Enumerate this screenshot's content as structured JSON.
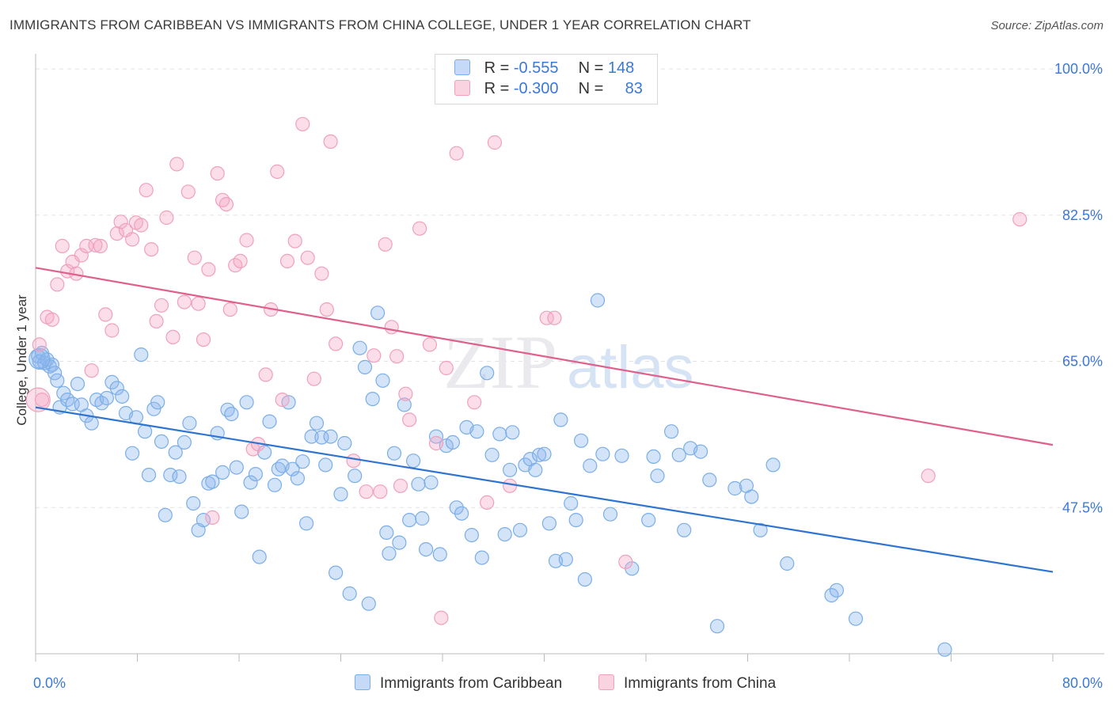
{
  "header": {
    "title": "IMMIGRANTS FROM CARIBBEAN VS IMMIGRANTS FROM CHINA COLLEGE, UNDER 1 YEAR CORRELATION CHART",
    "source": "Source: ZipAtlas.com"
  },
  "watermark": {
    "zip": "ZIP",
    "atlas": "atlas"
  },
  "legend": {
    "rows": [
      {
        "r_label": "R =",
        "r_value": "-0.555",
        "n_label": "N =",
        "n_value": "148"
      },
      {
        "r_label": "R =",
        "r_value": "-0.300",
        "n_label": "N =",
        "n_value": "83"
      }
    ],
    "bottom": [
      "Immigrants from Caribbean",
      "Immigrants from China"
    ]
  },
  "colors": {
    "caribbean": "#7aaee8",
    "china": "#f0a0bb",
    "caribbean_line": "#2f74d0",
    "china_line": "#e0608c",
    "tick": "#3c78d8"
  },
  "chart_data": {
    "type": "scatter",
    "title": "IMMIGRANTS FROM CARIBBEAN VS IMMIGRANTS FROM CHINA COLLEGE, UNDER 1 YEAR CORRELATION CHART",
    "ylabel": "College, Under 1 year",
    "xlim": [
      0,
      80
    ],
    "ylim": [
      30,
      102
    ],
    "x_tick_labels": [
      "0.0%",
      "80.0%"
    ],
    "y_ticks": [
      47.5,
      65.0,
      82.5,
      100.0
    ],
    "y_tick_labels": [
      "47.5%",
      "65.0%",
      "82.5%",
      "100.0%"
    ],
    "grid": true,
    "series": [
      {
        "name": "Immigrants from Caribbean",
        "color": "#7aaee8",
        "trend": [
          [
            0,
            59.5
          ],
          [
            80,
            39.8
          ]
        ],
        "points": [
          [
            0.2,
            65.6
          ],
          [
            0.3,
            65.0
          ],
          [
            0.5,
            66.0
          ],
          [
            0.7,
            64.8
          ],
          [
            0.9,
            65.2
          ],
          [
            1.1,
            64.4
          ],
          [
            1.3,
            64.6
          ],
          [
            1.5,
            63.6
          ],
          [
            1.7,
            62.7
          ],
          [
            1.9,
            59.5
          ],
          [
            2.2,
            61.2
          ],
          [
            2.5,
            60.4
          ],
          [
            2.9,
            59.9
          ],
          [
            3.3,
            62.3
          ],
          [
            3.6,
            59.8
          ],
          [
            4.0,
            58.5
          ],
          [
            4.4,
            57.6
          ],
          [
            4.8,
            60.4
          ],
          [
            5.2,
            60.0
          ],
          [
            5.6,
            60.6
          ],
          [
            6.0,
            62.5
          ],
          [
            6.4,
            61.8
          ],
          [
            6.8,
            60.8
          ],
          [
            7.1,
            58.8
          ],
          [
            7.6,
            54.0
          ],
          [
            7.9,
            58.3
          ],
          [
            8.3,
            65.8
          ],
          [
            8.6,
            56.6
          ],
          [
            8.9,
            51.4
          ],
          [
            9.3,
            59.3
          ],
          [
            9.6,
            60.1
          ],
          [
            9.9,
            55.4
          ],
          [
            10.2,
            46.6
          ],
          [
            10.6,
            51.4
          ],
          [
            11.0,
            54.1
          ],
          [
            11.3,
            51.2
          ],
          [
            11.7,
            55.3
          ],
          [
            12.1,
            57.6
          ],
          [
            12.4,
            48.0
          ],
          [
            12.8,
            44.8
          ],
          [
            13.2,
            46.0
          ],
          [
            13.6,
            50.4
          ],
          [
            13.9,
            50.6
          ],
          [
            14.3,
            56.4
          ],
          [
            14.7,
            51.7
          ],
          [
            15.1,
            59.2
          ],
          [
            15.4,
            58.7
          ],
          [
            15.8,
            52.3
          ],
          [
            16.2,
            47.0
          ],
          [
            16.6,
            60.1
          ],
          [
            16.9,
            50.5
          ],
          [
            17.3,
            51.5
          ],
          [
            17.6,
            41.6
          ],
          [
            18.0,
            54.1
          ],
          [
            18.4,
            57.8
          ],
          [
            18.8,
            50.2
          ],
          [
            19.1,
            52.1
          ],
          [
            19.4,
            52.5
          ],
          [
            19.9,
            60.1
          ],
          [
            20.2,
            52.1
          ],
          [
            20.6,
            51.0
          ],
          [
            21.0,
            53.0
          ],
          [
            21.3,
            45.6
          ],
          [
            21.7,
            56.0
          ],
          [
            22.1,
            57.6
          ],
          [
            22.5,
            55.9
          ],
          [
            22.8,
            52.6
          ],
          [
            23.2,
            56.0
          ],
          [
            23.6,
            39.7
          ],
          [
            24.0,
            49.1
          ],
          [
            24.3,
            55.2
          ],
          [
            24.7,
            37.2
          ],
          [
            25.1,
            51.3
          ],
          [
            25.5,
            66.6
          ],
          [
            25.9,
            64.3
          ],
          [
            26.2,
            36.0
          ],
          [
            26.5,
            60.5
          ],
          [
            26.9,
            70.8
          ],
          [
            27.3,
            62.7
          ],
          [
            27.6,
            44.5
          ],
          [
            27.8,
            42.0
          ],
          [
            28.2,
            54.0
          ],
          [
            28.6,
            43.3
          ],
          [
            29.0,
            59.8
          ],
          [
            29.4,
            46.0
          ],
          [
            29.7,
            53.1
          ],
          [
            30.1,
            50.3
          ],
          [
            30.4,
            46.2
          ],
          [
            30.7,
            42.5
          ],
          [
            31.1,
            50.5
          ],
          [
            31.5,
            56.0
          ],
          [
            31.8,
            41.9
          ],
          [
            32.3,
            54.9
          ],
          [
            32.8,
            55.3
          ],
          [
            33.1,
            47.5
          ],
          [
            33.5,
            46.8
          ],
          [
            33.9,
            57.1
          ],
          [
            34.3,
            44.2
          ],
          [
            34.7,
            56.6
          ],
          [
            35.1,
            41.5
          ],
          [
            35.5,
            63.6
          ],
          [
            35.9,
            53.8
          ],
          [
            36.5,
            56.3
          ],
          [
            36.9,
            44.3
          ],
          [
            37.3,
            52.0
          ],
          [
            37.5,
            56.5
          ],
          [
            38.1,
            44.8
          ],
          [
            38.5,
            52.6
          ],
          [
            38.9,
            53.3
          ],
          [
            39.3,
            52.0
          ],
          [
            39.6,
            53.8
          ],
          [
            40.0,
            53.9
          ],
          [
            40.4,
            45.6
          ],
          [
            40.9,
            41.1
          ],
          [
            41.3,
            58.0
          ],
          [
            41.7,
            41.3
          ],
          [
            42.1,
            48.0
          ],
          [
            42.5,
            46.0
          ],
          [
            42.9,
            55.5
          ],
          [
            43.2,
            38.9
          ],
          [
            43.6,
            52.5
          ],
          [
            44.2,
            72.3
          ],
          [
            44.6,
            53.9
          ],
          [
            45.2,
            46.7
          ],
          [
            46.1,
            53.7
          ],
          [
            46.9,
            40.2
          ],
          [
            48.2,
            46.0
          ],
          [
            48.6,
            53.6
          ],
          [
            48.9,
            51.3
          ],
          [
            50.0,
            56.6
          ],
          [
            50.6,
            53.8
          ],
          [
            51.0,
            44.8
          ],
          [
            51.5,
            54.6
          ],
          [
            52.3,
            54.2
          ],
          [
            53.0,
            50.8
          ],
          [
            53.6,
            33.3
          ],
          [
            55.0,
            49.8
          ],
          [
            55.9,
            50.1
          ],
          [
            56.3,
            48.8
          ],
          [
            57.0,
            44.8
          ],
          [
            58.0,
            52.6
          ],
          [
            59.1,
            40.8
          ],
          [
            62.6,
            37.0
          ],
          [
            63.0,
            37.6
          ],
          [
            64.5,
            34.2
          ],
          [
            71.5,
            30.5
          ]
        ]
      },
      {
        "name": "Immigrants from China",
        "color": "#f0a0bb",
        "trend": [
          [
            0,
            76.2
          ],
          [
            80,
            55.0
          ]
        ],
        "points": [
          [
            0.3,
            67.0
          ],
          [
            0.5,
            60.4
          ],
          [
            0.9,
            70.3
          ],
          [
            1.3,
            70.0
          ],
          [
            1.7,
            74.2
          ],
          [
            2.1,
            78.8
          ],
          [
            2.5,
            75.8
          ],
          [
            2.9,
            76.9
          ],
          [
            3.2,
            75.5
          ],
          [
            3.6,
            77.7
          ],
          [
            4.0,
            78.8
          ],
          [
            4.4,
            63.9
          ],
          [
            4.7,
            78.9
          ],
          [
            5.1,
            78.8
          ],
          [
            5.5,
            70.6
          ],
          [
            6.0,
            68.7
          ],
          [
            6.4,
            80.3
          ],
          [
            6.7,
            81.7
          ],
          [
            7.1,
            80.7
          ],
          [
            7.6,
            79.6
          ],
          [
            7.9,
            81.6
          ],
          [
            8.3,
            81.3
          ],
          [
            8.7,
            85.5
          ],
          [
            9.1,
            78.4
          ],
          [
            9.5,
            69.8
          ],
          [
            9.9,
            71.7
          ],
          [
            10.3,
            82.2
          ],
          [
            10.8,
            67.9
          ],
          [
            11.1,
            88.6
          ],
          [
            11.7,
            72.1
          ],
          [
            12.0,
            85.3
          ],
          [
            12.5,
            77.4
          ],
          [
            12.8,
            71.9
          ],
          [
            13.2,
            67.6
          ],
          [
            13.6,
            76.0
          ],
          [
            13.9,
            46.3
          ],
          [
            14.3,
            87.5
          ],
          [
            14.7,
            84.3
          ],
          [
            15.0,
            83.8
          ],
          [
            15.3,
            71.2
          ],
          [
            15.7,
            76.5
          ],
          [
            16.1,
            77.0
          ],
          [
            16.6,
            79.5
          ],
          [
            17.1,
            54.5
          ],
          [
            17.5,
            55.1
          ],
          [
            18.1,
            63.4
          ],
          [
            18.5,
            71.2
          ],
          [
            19.0,
            87.7
          ],
          [
            19.4,
            60.4
          ],
          [
            19.8,
            77.0
          ],
          [
            20.4,
            79.4
          ],
          [
            21.0,
            93.4
          ],
          [
            21.4,
            77.4
          ],
          [
            21.9,
            62.9
          ],
          [
            22.5,
            75.5
          ],
          [
            22.9,
            71.2
          ],
          [
            23.2,
            91.3
          ],
          [
            23.6,
            67.1
          ],
          [
            25.0,
            53.1
          ],
          [
            26.0,
            49.4
          ],
          [
            26.6,
            65.7
          ],
          [
            27.1,
            49.4
          ],
          [
            27.5,
            79.0
          ],
          [
            28.0,
            69.1
          ],
          [
            28.4,
            65.6
          ],
          [
            28.7,
            50.1
          ],
          [
            29.1,
            61.1
          ],
          [
            29.4,
            58.0
          ],
          [
            30.2,
            80.9
          ],
          [
            31.0,
            67.0
          ],
          [
            31.5,
            55.2
          ],
          [
            31.9,
            34.3
          ],
          [
            32.3,
            64.2
          ],
          [
            33.1,
            89.9
          ],
          [
            34.5,
            60.1
          ],
          [
            35.5,
            48.1
          ],
          [
            36.1,
            91.2
          ],
          [
            37.3,
            50.1
          ],
          [
            40.2,
            70.2
          ],
          [
            40.8,
            70.2
          ],
          [
            46.4,
            41.0
          ],
          [
            70.2,
            51.3
          ],
          [
            77.4,
            82.0
          ]
        ]
      }
    ]
  }
}
